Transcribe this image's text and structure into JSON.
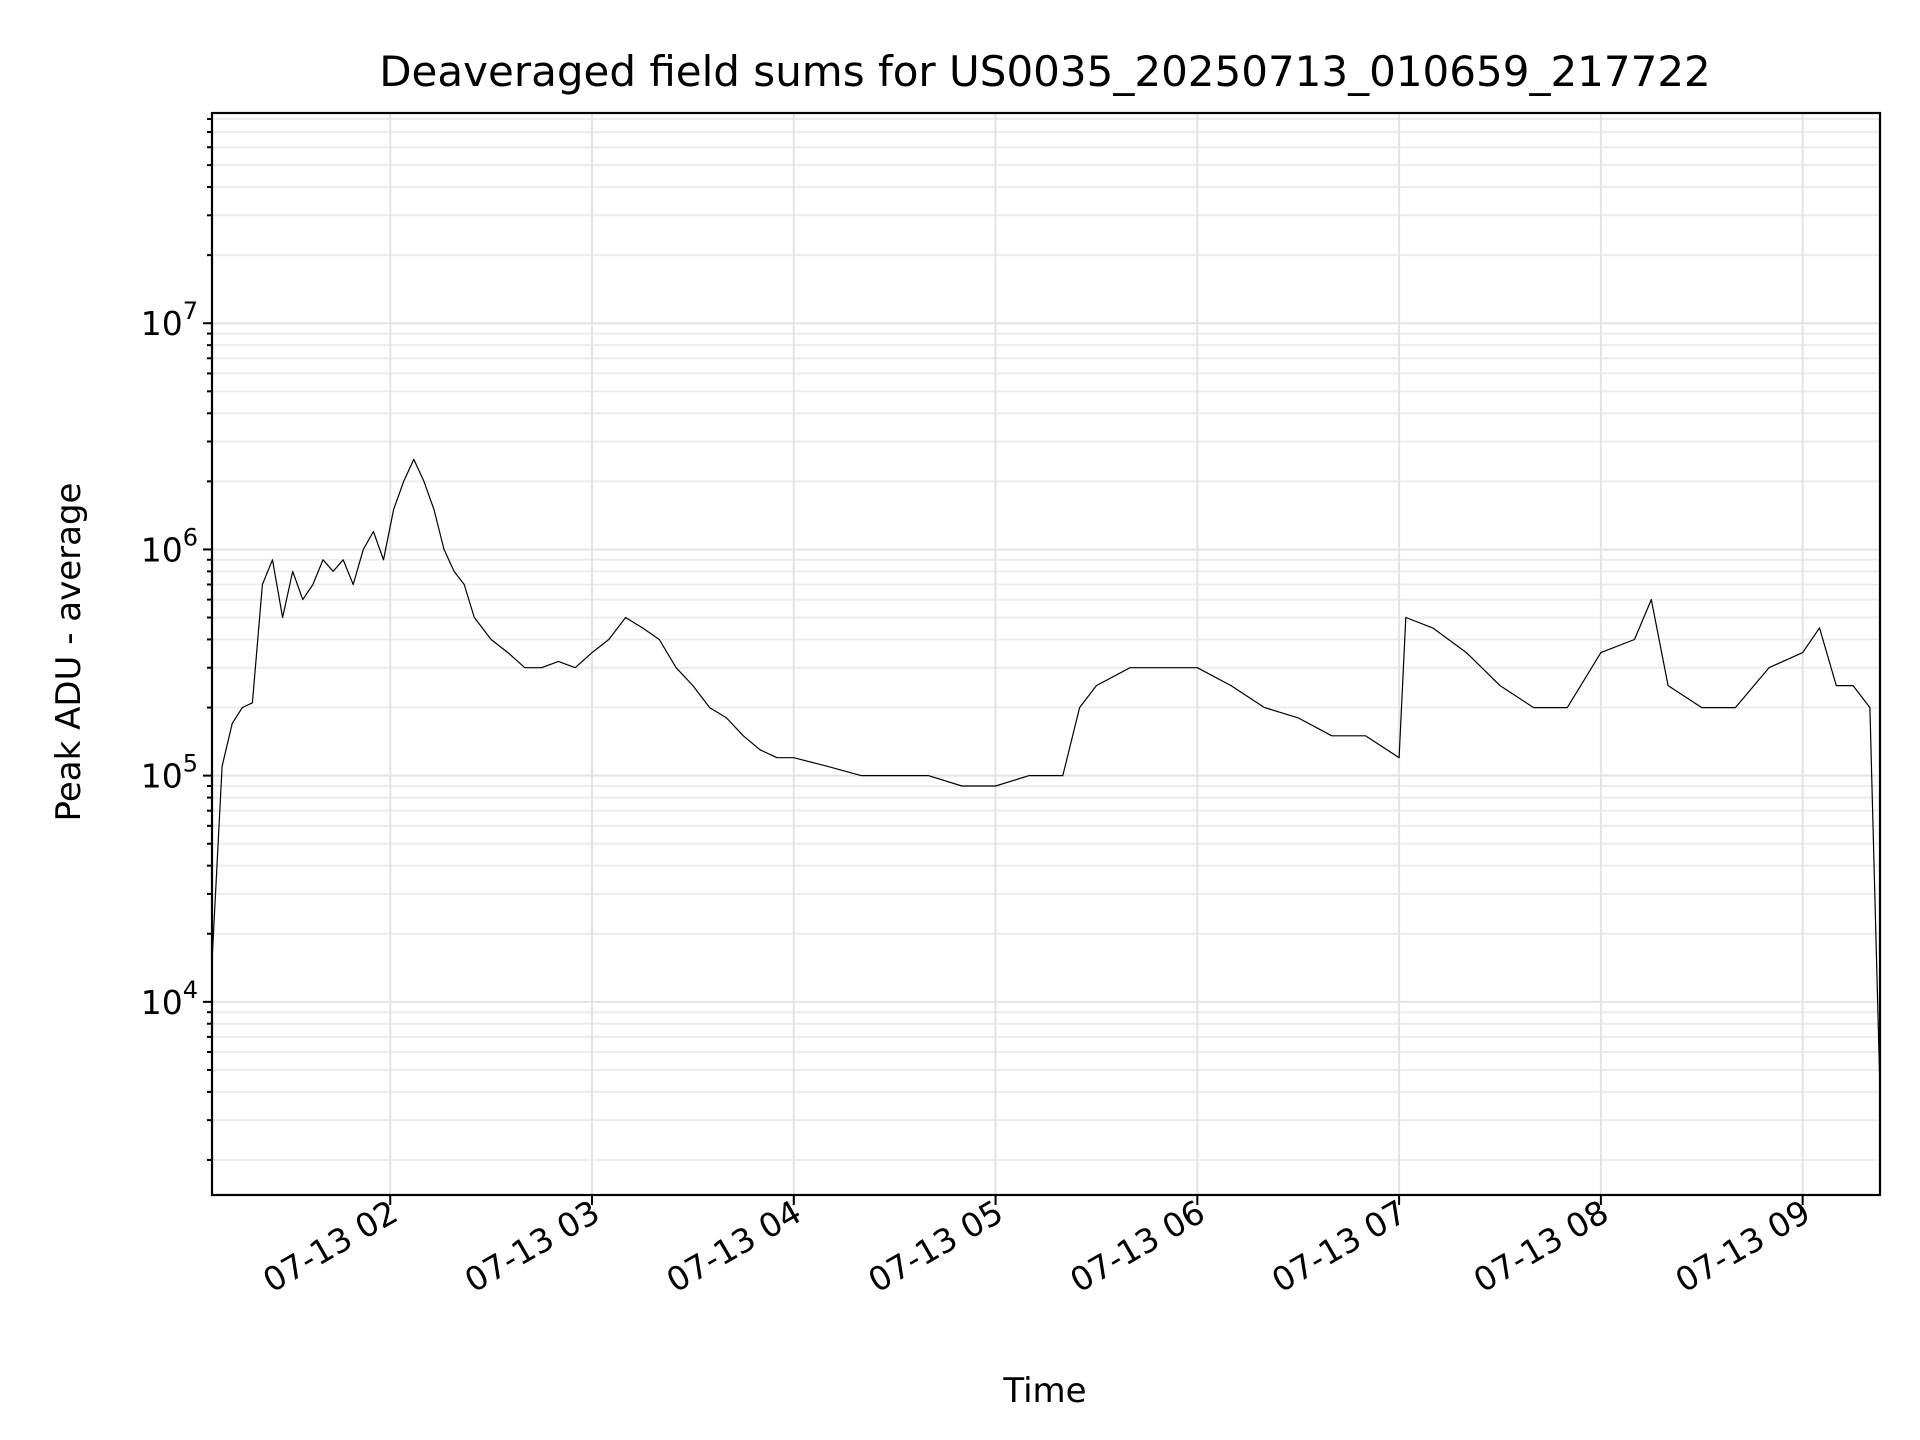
{
  "chart_data": {
    "type": "line",
    "title": "Deaveraged field sums for US0035_20250713_010659_217722",
    "xlabel": "Time",
    "ylabel": "Peak ADU - average",
    "yscale": "log",
    "ylim": [
      1400,
      85000000
    ],
    "xlim": [
      "2025-07-13 01:07:00",
      "2025-07-13 09:23:00"
    ],
    "grid": true,
    "line_color": "#000000",
    "x_ticks": [
      "07-13 02",
      "07-13 03",
      "07-13 04",
      "07-13 05",
      "07-13 06",
      "07-13 07",
      "07-13 08",
      "07-13 09"
    ],
    "y_ticks": [
      {
        "base": "10",
        "exp": "4",
        "value": 10000
      },
      {
        "base": "10",
        "exp": "5",
        "value": 100000
      },
      {
        "base": "10",
        "exp": "6",
        "value": 1000000
      },
      {
        "base": "10",
        "exp": "7",
        "value": 10000000
      }
    ],
    "series": [
      {
        "x": [
          "2025-07-13 01:07",
          "2025-07-13 01:10",
          "2025-07-13 01:13",
          "2025-07-13 01:16",
          "2025-07-13 01:19",
          "2025-07-13 01:22",
          "2025-07-13 01:25",
          "2025-07-13 01:28",
          "2025-07-13 01:31",
          "2025-07-13 01:34",
          "2025-07-13 01:37",
          "2025-07-13 01:40",
          "2025-07-13 01:43",
          "2025-07-13 01:46",
          "2025-07-13 01:49",
          "2025-07-13 01:52",
          "2025-07-13 01:55",
          "2025-07-13 01:58",
          "2025-07-13 02:01",
          "2025-07-13 02:04",
          "2025-07-13 02:07",
          "2025-07-13 02:10",
          "2025-07-13 02:13",
          "2025-07-13 02:16",
          "2025-07-13 02:19",
          "2025-07-13 02:22",
          "2025-07-13 02:25",
          "2025-07-13 02:30",
          "2025-07-13 02:35",
          "2025-07-13 02:40",
          "2025-07-13 02:45",
          "2025-07-13 02:50",
          "2025-07-13 02:55",
          "2025-07-13 03:00",
          "2025-07-13 03:05",
          "2025-07-13 03:10",
          "2025-07-13 03:15",
          "2025-07-13 03:20",
          "2025-07-13 03:25",
          "2025-07-13 03:30",
          "2025-07-13 03:35",
          "2025-07-13 03:40",
          "2025-07-13 03:45",
          "2025-07-13 03:50",
          "2025-07-13 03:55",
          "2025-07-13 04:00",
          "2025-07-13 04:10",
          "2025-07-13 04:20",
          "2025-07-13 04:30",
          "2025-07-13 04:40",
          "2025-07-13 04:50",
          "2025-07-13 05:00",
          "2025-07-13 05:10",
          "2025-07-13 05:20",
          "2025-07-13 05:25",
          "2025-07-13 05:30",
          "2025-07-13 05:40",
          "2025-07-13 05:50",
          "2025-07-13 06:00",
          "2025-07-13 06:10",
          "2025-07-13 06:20",
          "2025-07-13 06:30",
          "2025-07-13 06:40",
          "2025-07-13 06:50",
          "2025-07-13 07:00",
          "2025-07-13 07:02",
          "2025-07-13 07:10",
          "2025-07-13 07:20",
          "2025-07-13 07:30",
          "2025-07-13 07:40",
          "2025-07-13 07:50",
          "2025-07-13 08:00",
          "2025-07-13 08:10",
          "2025-07-13 08:15",
          "2025-07-13 08:20",
          "2025-07-13 08:30",
          "2025-07-13 08:40",
          "2025-07-13 08:50",
          "2025-07-13 09:00",
          "2025-07-13 09:05",
          "2025-07-13 09:10",
          "2025-07-13 09:15",
          "2025-07-13 09:20",
          "2025-07-13 09:23"
        ],
        "y": [
          15000,
          110000,
          170000,
          200000,
          210000,
          700000,
          900000,
          500000,
          800000,
          600000,
          700000,
          900000,
          800000,
          900000,
          700000,
          1000000,
          1200000,
          900000,
          1500000,
          2000000,
          2500000,
          2000000,
          1500000,
          1000000,
          800000,
          700000,
          500000,
          400000,
          350000,
          300000,
          300000,
          320000,
          300000,
          350000,
          400000,
          500000,
          450000,
          400000,
          300000,
          250000,
          200000,
          180000,
          150000,
          130000,
          120000,
          120000,
          110000,
          100000,
          100000,
          100000,
          90000,
          90000,
          100000,
          100000,
          200000,
          250000,
          300000,
          300000,
          300000,
          250000,
          200000,
          180000,
          150000,
          150000,
          120000,
          500000,
          450000,
          350000,
          250000,
          200000,
          200000,
          350000,
          400000,
          600000,
          250000,
          200000,
          200000,
          300000,
          350000,
          450000,
          250000,
          250000,
          200000,
          4000
        ]
      }
    ]
  }
}
